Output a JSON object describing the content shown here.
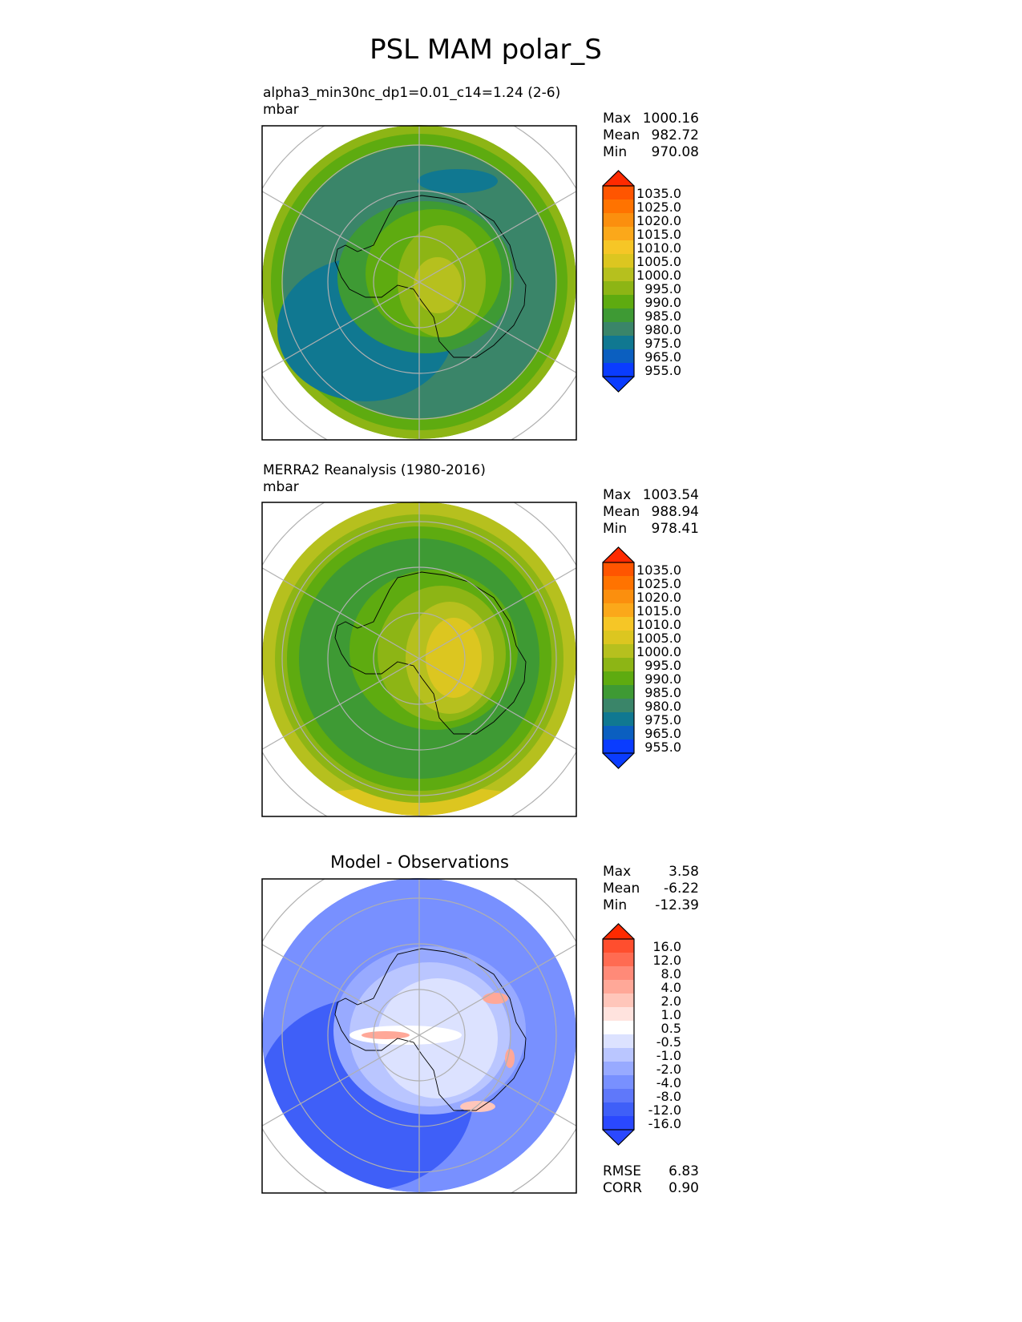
{
  "figure_title": "PSL MAM polar_S",
  "panels": [
    {
      "title": "alpha3_min30nc_dp1=0.01_c14=1.24 (2-6)",
      "units": "mbar",
      "stats": {
        "max_label": "Max",
        "max": "1000.16",
        "mean_label": "Mean",
        "mean": "982.72",
        "min_label": "Min",
        "min": "970.08"
      }
    },
    {
      "title": "MERRA2 Reanalysis (1980-2016)",
      "units": "mbar",
      "stats": {
        "max_label": "Max",
        "max": "1003.54",
        "mean_label": "Mean",
        "mean": "988.94",
        "min_label": "Min",
        "min": "978.41"
      }
    },
    {
      "title": "Model - Observations",
      "stats": {
        "max_label": "Max",
        "max": "3.58",
        "mean_label": "Mean",
        "mean": "-6.22",
        "min_label": "Min",
        "min": "-12.39"
      },
      "metrics": {
        "rmse_label": "RMSE",
        "rmse": "6.83",
        "corr_label": "CORR",
        "corr": "0.90"
      }
    }
  ],
  "colorbar_psl": {
    "labels": [
      "1035.0",
      "1025.0",
      "1020.0",
      "1015.0",
      "1010.0",
      "1005.0",
      "1000.0",
      "995.0",
      "990.0",
      "985.0",
      "980.0",
      "975.0",
      "965.0",
      "955.0"
    ],
    "colors": [
      "#ff2a00",
      "#ff5500",
      "#ff7300",
      "#fb8f0e",
      "#fba81a",
      "#f6c626",
      "#dcc620",
      "#b6c01e",
      "#8db515",
      "#5eab10",
      "#3e9a34",
      "#3a8569",
      "#107891",
      "#0b5fc0",
      "#0a3cff"
    ]
  },
  "colorbar_diff": {
    "labels": [
      "16.0",
      "12.0",
      "8.0",
      "4.0",
      "2.0",
      "1.0",
      "0.5",
      "-0.5",
      "-1.0",
      "-2.0",
      "-4.0",
      "-8.0",
      "-12.0",
      "-16.0"
    ],
    "colors": [
      "#ff2a00",
      "#ff4e2e",
      "#ff6b52",
      "#ff8a78",
      "#ffa898",
      "#ffc6ba",
      "#ffe3de",
      "#ffffff",
      "#dce2ff",
      "#bac6ff",
      "#98aaff",
      "#7890ff",
      "#5f78fa",
      "#3f5ff8",
      "#2a48ff"
    ]
  }
}
